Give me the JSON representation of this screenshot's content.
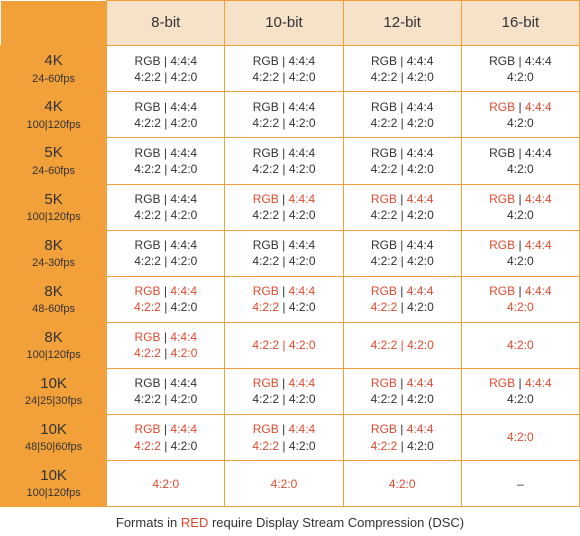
{
  "colors": {
    "header_bg": "#f5e2c9",
    "rowhead_bg": "#f1a03a",
    "border": "#f1a03a",
    "text": "#333333",
    "red": "#e2492f",
    "background": "#ffffff"
  },
  "columns": [
    "8-bit",
    "10-bit",
    "12-bit",
    "16-bit"
  ],
  "rows": [
    {
      "res": "4K",
      "fps": "24-60fps",
      "cells": [
        {
          "l1": [
            [
              "blk",
              "RGB | 4:4:4"
            ]
          ],
          "l2": [
            [
              "blk",
              "4:2:2 | 4:2:0"
            ]
          ]
        },
        {
          "l1": [
            [
              "blk",
              "RGB | 4:4:4"
            ]
          ],
          "l2": [
            [
              "blk",
              "4:2:2 | 4:2:0"
            ]
          ]
        },
        {
          "l1": [
            [
              "blk",
              "RGB | 4:4:4"
            ]
          ],
          "l2": [
            [
              "blk",
              "4:2:2 | 4:2:0"
            ]
          ]
        },
        {
          "l1": [
            [
              "blk",
              "RGB | 4:4:4"
            ]
          ],
          "l2": [
            [
              "blk",
              "4:2:0"
            ]
          ]
        }
      ]
    },
    {
      "res": "4K",
      "fps": "100|120fps",
      "cells": [
        {
          "l1": [
            [
              "blk",
              "RGB | 4:4:4"
            ]
          ],
          "l2": [
            [
              "blk",
              "4:2:2 | 4:2:0"
            ]
          ]
        },
        {
          "l1": [
            [
              "blk",
              "RGB | 4:4:4"
            ]
          ],
          "l2": [
            [
              "blk",
              "4:2:2 | 4:2:0"
            ]
          ]
        },
        {
          "l1": [
            [
              "blk",
              "RGB | 4:4:4"
            ]
          ],
          "l2": [
            [
              "blk",
              "4:2:2 | 4:2:0"
            ]
          ]
        },
        {
          "l1": [
            [
              "red",
              "RGB"
            ],
            [
              "blk",
              " | "
            ],
            [
              "red",
              "4:4:4"
            ]
          ],
          "l2": [
            [
              "blk",
              "4:2:0"
            ]
          ]
        }
      ]
    },
    {
      "res": "5K",
      "fps": "24-60fps",
      "cells": [
        {
          "l1": [
            [
              "blk",
              "RGB | 4:4:4"
            ]
          ],
          "l2": [
            [
              "blk",
              "4:2:2 | 4:2:0"
            ]
          ]
        },
        {
          "l1": [
            [
              "blk",
              "RGB | 4:4:4"
            ]
          ],
          "l2": [
            [
              "blk",
              "4:2:2 | 4:2:0"
            ]
          ]
        },
        {
          "l1": [
            [
              "blk",
              "RGB | 4:4:4"
            ]
          ],
          "l2": [
            [
              "blk",
              "4:2:2 | 4:2:0"
            ]
          ]
        },
        {
          "l1": [
            [
              "blk",
              "RGB | 4:4:4"
            ]
          ],
          "l2": [
            [
              "blk",
              "4:2:0"
            ]
          ]
        }
      ]
    },
    {
      "res": "5K",
      "fps": "100|120fps",
      "cells": [
        {
          "l1": [
            [
              "blk",
              "RGB | 4:4:4"
            ]
          ],
          "l2": [
            [
              "blk",
              "4:2:2 | 4:2:0"
            ]
          ]
        },
        {
          "l1": [
            [
              "red",
              "RGB"
            ],
            [
              "blk",
              " | "
            ],
            [
              "red",
              "4:4:4"
            ]
          ],
          "l2": [
            [
              "blk",
              "4:2:2 | 4:2:0"
            ]
          ]
        },
        {
          "l1": [
            [
              "red",
              "RGB"
            ],
            [
              "blk",
              " | "
            ],
            [
              "red",
              "4:4:4"
            ]
          ],
          "l2": [
            [
              "blk",
              "4:2:2 | 4:2:0"
            ]
          ]
        },
        {
          "l1": [
            [
              "red",
              "RGB"
            ],
            [
              "blk",
              " | "
            ],
            [
              "red",
              "4:4:4"
            ]
          ],
          "l2": [
            [
              "blk",
              "4:2:0"
            ]
          ]
        }
      ]
    },
    {
      "res": "8K",
      "fps": "24-30fps",
      "cells": [
        {
          "l1": [
            [
              "blk",
              "RGB | 4:4:4"
            ]
          ],
          "l2": [
            [
              "blk",
              "4:2:2 | 4:2:0"
            ]
          ]
        },
        {
          "l1": [
            [
              "blk",
              "RGB | 4:4:4"
            ]
          ],
          "l2": [
            [
              "blk",
              "4:2:2 | 4:2:0"
            ]
          ]
        },
        {
          "l1": [
            [
              "blk",
              "RGB | 4:4:4"
            ]
          ],
          "l2": [
            [
              "blk",
              "4:2:2 | 4:2:0"
            ]
          ]
        },
        {
          "l1": [
            [
              "red",
              "RGB"
            ],
            [
              "blk",
              " | "
            ],
            [
              "red",
              "4:4:4"
            ]
          ],
          "l2": [
            [
              "blk",
              "4:2:0"
            ]
          ]
        }
      ]
    },
    {
      "res": "8K",
      "fps": "48-60fps",
      "cells": [
        {
          "l1": [
            [
              "red",
              "RGB"
            ],
            [
              "blk",
              " | "
            ],
            [
              "red",
              "4:4:4"
            ]
          ],
          "l2": [
            [
              "red",
              "4:2:2"
            ],
            [
              "blk",
              " | 4:2:0"
            ]
          ]
        },
        {
          "l1": [
            [
              "red",
              "RGB"
            ],
            [
              "blk",
              " | "
            ],
            [
              "red",
              "4:4:4"
            ]
          ],
          "l2": [
            [
              "red",
              "4:2:2"
            ],
            [
              "blk",
              " | 4:2:0"
            ]
          ]
        },
        {
          "l1": [
            [
              "red",
              "RGB"
            ],
            [
              "blk",
              " | "
            ],
            [
              "red",
              "4:4:4"
            ]
          ],
          "l2": [
            [
              "red",
              "4:2:2"
            ],
            [
              "blk",
              " | 4:2:0"
            ]
          ]
        },
        {
          "l1": [
            [
              "red",
              "RGB"
            ],
            [
              "blk",
              " | "
            ],
            [
              "red",
              "4:4:4"
            ]
          ],
          "l2": [
            [
              "red",
              "4:2:0"
            ]
          ]
        }
      ]
    },
    {
      "res": "8K",
      "fps": "100|120fps",
      "cells": [
        {
          "l1": [
            [
              "red",
              "RGB"
            ],
            [
              "blk",
              " | "
            ],
            [
              "red",
              "4:4:4"
            ]
          ],
          "l2": [
            [
              "red",
              "4:2:2"
            ],
            [
              "blk",
              " | "
            ],
            [
              "red",
              "4:2:0"
            ]
          ]
        },
        {
          "l1": [
            [
              "red",
              "4:2:2 | 4:2:0"
            ]
          ],
          "l2": []
        },
        {
          "l1": [
            [
              "red",
              "4:2:2 | 4:2:0"
            ]
          ],
          "l2": []
        },
        {
          "l1": [
            [
              "red",
              "4:2:0"
            ]
          ],
          "l2": []
        }
      ]
    },
    {
      "res": "10K",
      "fps": "24|25|30fps",
      "cells": [
        {
          "l1": [
            [
              "blk",
              "RGB | 4:4:4"
            ]
          ],
          "l2": [
            [
              "blk",
              "4:2:2 | 4:2:0"
            ]
          ]
        },
        {
          "l1": [
            [
              "red",
              "RGB"
            ],
            [
              "blk",
              " | "
            ],
            [
              "red",
              "4:4:4"
            ]
          ],
          "l2": [
            [
              "blk",
              "4:2:2 | 4:2:0"
            ]
          ]
        },
        {
          "l1": [
            [
              "red",
              "RGB"
            ],
            [
              "blk",
              " | "
            ],
            [
              "red",
              "4:4:4"
            ]
          ],
          "l2": [
            [
              "blk",
              "4:2:2 | 4:2:0"
            ]
          ]
        },
        {
          "l1": [
            [
              "red",
              "RGB"
            ],
            [
              "blk",
              " | "
            ],
            [
              "red",
              "4:4:4"
            ]
          ],
          "l2": [
            [
              "blk",
              "4:2:0"
            ]
          ]
        }
      ]
    },
    {
      "res": "10K",
      "fps": "48|50|60fps",
      "cells": [
        {
          "l1": [
            [
              "red",
              "RGB"
            ],
            [
              "blk",
              " | "
            ],
            [
              "red",
              "4:4:4"
            ]
          ],
          "l2": [
            [
              "red",
              "4:2:2"
            ],
            [
              "blk",
              " | 4:2:0"
            ]
          ]
        },
        {
          "l1": [
            [
              "red",
              "RGB"
            ],
            [
              "blk",
              " | "
            ],
            [
              "red",
              "4:4:4"
            ]
          ],
          "l2": [
            [
              "red",
              "4:2:2"
            ],
            [
              "blk",
              " | 4:2:0"
            ]
          ]
        },
        {
          "l1": [
            [
              "red",
              "RGB"
            ],
            [
              "blk",
              " | "
            ],
            [
              "red",
              "4:4:4"
            ]
          ],
          "l2": [
            [
              "red",
              "4:2:2"
            ],
            [
              "blk",
              " | 4:2:0"
            ]
          ]
        },
        {
          "l1": [
            [
              "red",
              "4:2:0"
            ]
          ],
          "l2": []
        }
      ]
    },
    {
      "res": "10K",
      "fps": "100|120fps",
      "cells": [
        {
          "l1": [
            [
              "red",
              "4:2:0"
            ]
          ],
          "l2": []
        },
        {
          "l1": [
            [
              "red",
              "4:2:0"
            ]
          ],
          "l2": []
        },
        {
          "l1": [
            [
              "red",
              "4:2:0"
            ]
          ],
          "l2": []
        },
        {
          "l1": [
            [
              "blk",
              "–"
            ]
          ],
          "l2": []
        }
      ]
    }
  ],
  "caption": {
    "pre": "Formats in ",
    "red": "RED",
    "post": " require Display Stream Compression (DSC)"
  }
}
